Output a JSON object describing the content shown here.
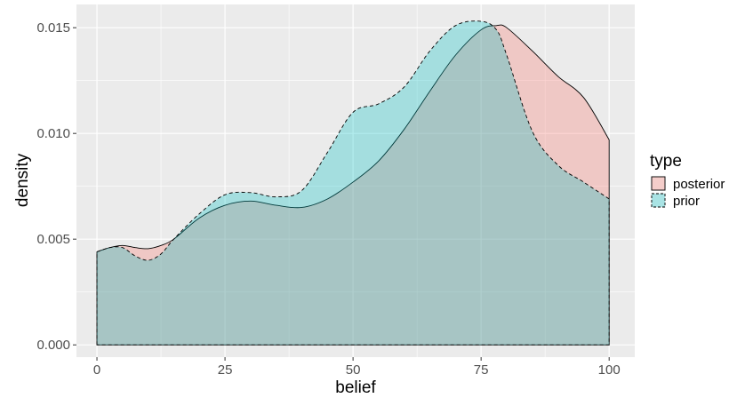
{
  "chart_data": {
    "type": "area",
    "title": "",
    "xlabel": "belief",
    "ylabel": "density",
    "xlim": [
      -4,
      105
    ],
    "ylim": [
      -0.00058,
      0.0161
    ],
    "x_ticks": [
      0,
      25,
      50,
      75,
      100
    ],
    "x_tick_labels": [
      "0",
      "25",
      "50",
      "75",
      "100"
    ],
    "y_ticks": [
      0.0,
      0.005,
      0.01,
      0.015
    ],
    "y_tick_labels": [
      "0.000",
      "0.005",
      "0.010",
      "0.015"
    ],
    "grid": true,
    "legend": {
      "title": "type",
      "position": "right"
    },
    "series": [
      {
        "name": "posterior",
        "fill": "#F8766D",
        "line_style": "solid",
        "x": [
          0,
          2.5,
          5,
          7.5,
          10,
          12.5,
          15,
          20,
          25,
          30,
          35,
          40,
          45,
          50,
          55,
          60,
          65,
          70,
          75,
          78,
          80,
          85,
          90,
          95,
          100
        ],
        "y": [
          0.0044,
          0.0046,
          0.0047,
          0.0046,
          0.00455,
          0.0047,
          0.005,
          0.006,
          0.0066,
          0.0068,
          0.0066,
          0.0065,
          0.0069,
          0.0077,
          0.0087,
          0.0102,
          0.012,
          0.0137,
          0.0149,
          0.0151,
          0.015,
          0.0139,
          0.0127,
          0.0117,
          0.0097
        ]
      },
      {
        "name": "prior",
        "fill": "#00BFC4",
        "line_style": "dashed",
        "x": [
          0,
          2.5,
          5,
          7.5,
          10,
          12.5,
          15,
          20,
          25,
          30,
          35,
          40,
          45,
          50,
          55,
          60,
          65,
          70,
          75,
          78,
          80,
          85,
          90,
          95,
          100
        ],
        "y": [
          0.0044,
          0.0046,
          0.0046,
          0.0042,
          0.004,
          0.0043,
          0.005,
          0.0062,
          0.0071,
          0.0072,
          0.007,
          0.0073,
          0.0091,
          0.011,
          0.0114,
          0.0122,
          0.0139,
          0.0151,
          0.0153,
          0.0149,
          0.0137,
          0.0101,
          0.0085,
          0.0077,
          0.0069
        ]
      }
    ]
  }
}
